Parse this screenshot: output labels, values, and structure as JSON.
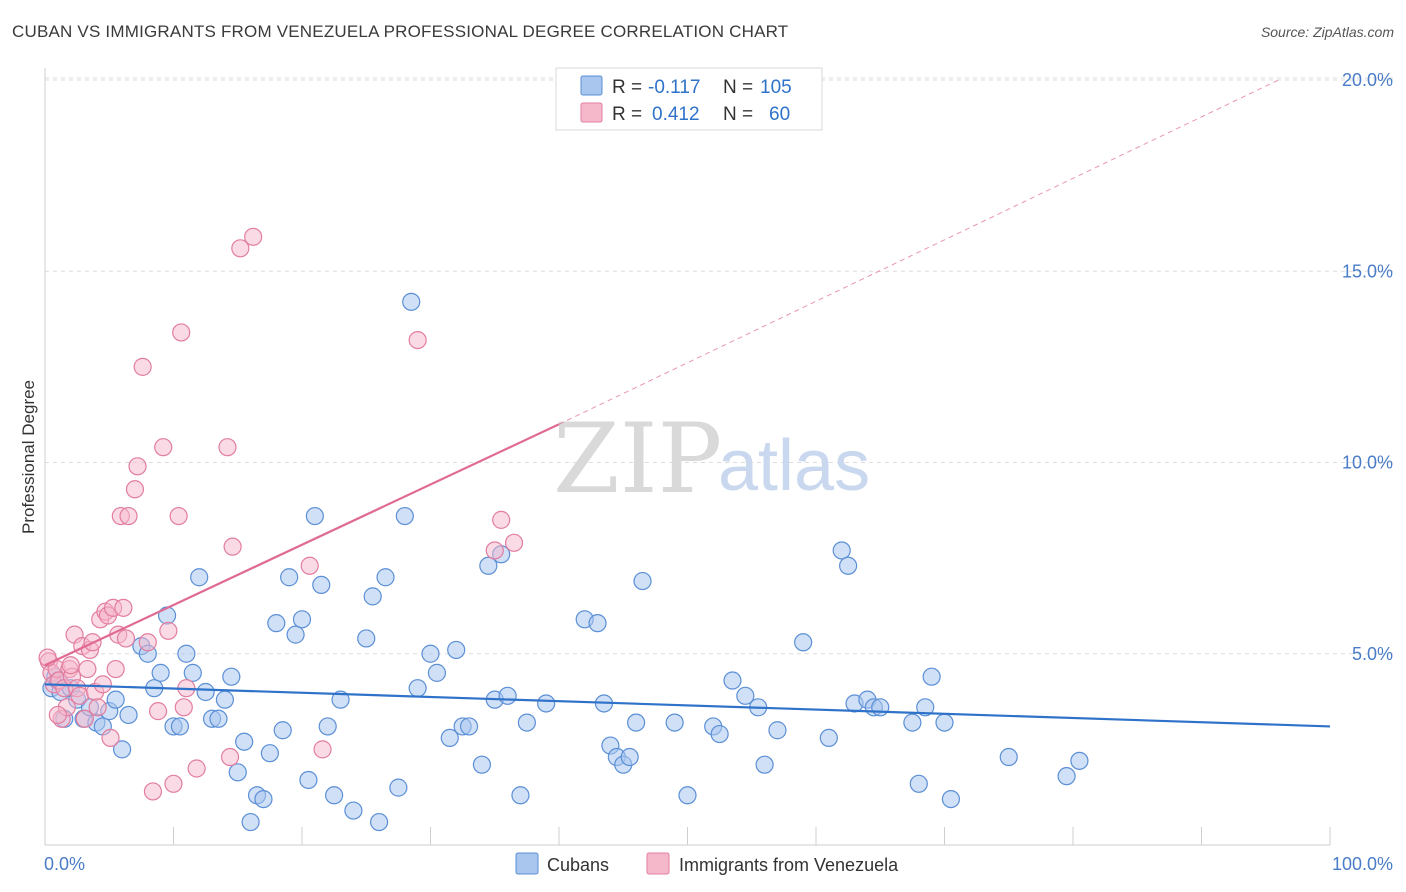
{
  "header": {
    "title": "CUBAN VS IMMIGRANTS FROM VENEZUELA PROFESSIONAL DEGREE CORRELATION CHART",
    "source": "Source: ZipAtlas.com"
  },
  "watermark": {
    "zip": "ZIP",
    "atlas": "atlas"
  },
  "legend": {
    "rows": [
      {
        "r_label": "R =",
        "r_value": "-0.117",
        "n_label": "N =",
        "n_value": "105"
      },
      {
        "r_label": "R =",
        "r_value": "0.412",
        "n_label": "N =",
        "n_value": "60"
      }
    ]
  },
  "bottom_legend": {
    "cubans": "Cubans",
    "venezuela": "Immigrants from Venezuela"
  },
  "chart_data": {
    "type": "scatter",
    "title": "CUBAN VS IMMIGRANTS FROM VENEZUELA PROFESSIONAL DEGREE CORRELATION CHART",
    "xlabel": "",
    "ylabel": "Professional Degree",
    "xlim": [
      0,
      100
    ],
    "ylim": [
      0,
      20
    ],
    "x_tick_labels": [
      "0.0%",
      "100.0%"
    ],
    "y_ticks": [
      5,
      10,
      15,
      20
    ],
    "y_tick_labels": [
      "5.0%",
      "10.0%",
      "15.0%",
      "20.0%"
    ],
    "grid": true,
    "legend_position": "top-center",
    "colors": {
      "cubans_fill": "#a9c6ee",
      "cubans_stroke": "#5b8fd6",
      "cubans_line": "#2f72c9",
      "venezuela_fill": "#f5b8cb",
      "venezuela_stroke": "#e27d9f",
      "venezuela_line": "#e06a93",
      "tick_text": "#4a7cc7"
    },
    "series": [
      {
        "name": "Cubans",
        "r": -0.117,
        "n": 105,
        "trend": {
          "x": [
            0,
            100
          ],
          "y": [
            4.2,
            3.1
          ]
        },
        "points": [
          [
            0.5,
            4.1
          ],
          [
            0.8,
            4.4
          ],
          [
            1.0,
            4.3
          ],
          [
            1.2,
            4.0
          ],
          [
            1.5,
            3.3
          ],
          [
            2.0,
            4.1
          ],
          [
            2.5,
            3.8
          ],
          [
            3.0,
            3.3
          ],
          [
            3.5,
            3.6
          ],
          [
            4.0,
            3.2
          ],
          [
            4.5,
            3.1
          ],
          [
            5.0,
            3.5
          ],
          [
            5.5,
            3.8
          ],
          [
            6.0,
            2.5
          ],
          [
            6.5,
            3.4
          ],
          [
            7.5,
            5.2
          ],
          [
            8.0,
            5.0
          ],
          [
            8.5,
            4.1
          ],
          [
            9.0,
            4.5
          ],
          [
            9.5,
            6.0
          ],
          [
            10.0,
            3.1
          ],
          [
            10.5,
            3.1
          ],
          [
            11.0,
            5.0
          ],
          [
            11.5,
            4.5
          ],
          [
            12.0,
            7.0
          ],
          [
            12.5,
            4.0
          ],
          [
            13.0,
            3.3
          ],
          [
            13.5,
            3.3
          ],
          [
            14.0,
            3.8
          ],
          [
            14.5,
            4.4
          ],
          [
            15.0,
            1.9
          ],
          [
            15.5,
            2.7
          ],
          [
            16.0,
            0.6
          ],
          [
            16.5,
            1.3
          ],
          [
            17.0,
            1.2
          ],
          [
            17.5,
            2.4
          ],
          [
            18.0,
            5.8
          ],
          [
            18.5,
            3.0
          ],
          [
            19.0,
            7.0
          ],
          [
            19.5,
            5.5
          ],
          [
            20.0,
            5.9
          ],
          [
            20.5,
            1.7
          ],
          [
            21.0,
            8.6
          ],
          [
            21.5,
            6.8
          ],
          [
            22.0,
            3.1
          ],
          [
            22.5,
            1.3
          ],
          [
            23.0,
            3.8
          ],
          [
            24.0,
            0.9
          ],
          [
            25.0,
            5.4
          ],
          [
            25.5,
            6.5
          ],
          [
            26.0,
            0.6
          ],
          [
            26.5,
            7.0
          ],
          [
            27.5,
            1.5
          ],
          [
            28.0,
            8.6
          ],
          [
            28.5,
            14.2
          ],
          [
            29.0,
            4.1
          ],
          [
            30.0,
            5.0
          ],
          [
            30.5,
            4.5
          ],
          [
            31.5,
            2.8
          ],
          [
            32.0,
            5.1
          ],
          [
            32.5,
            3.1
          ],
          [
            33.0,
            3.1
          ],
          [
            34.0,
            2.1
          ],
          [
            34.5,
            7.3
          ],
          [
            35.0,
            3.8
          ],
          [
            35.5,
            7.6
          ],
          [
            36.0,
            3.9
          ],
          [
            37.0,
            1.3
          ],
          [
            37.5,
            3.2
          ],
          [
            39.0,
            3.7
          ],
          [
            42.0,
            5.9
          ],
          [
            43.0,
            5.8
          ],
          [
            43.5,
            3.7
          ],
          [
            44.0,
            2.6
          ],
          [
            44.5,
            2.3
          ],
          [
            45.0,
            2.1
          ],
          [
            45.5,
            2.3
          ],
          [
            46.0,
            3.2
          ],
          [
            46.5,
            6.9
          ],
          [
            49.0,
            3.2
          ],
          [
            50.0,
            1.3
          ],
          [
            52.0,
            3.1
          ],
          [
            52.5,
            2.9
          ],
          [
            53.5,
            4.3
          ],
          [
            54.5,
            3.9
          ],
          [
            55.5,
            3.6
          ],
          [
            56.0,
            2.1
          ],
          [
            57.0,
            3.0
          ],
          [
            59.0,
            5.3
          ],
          [
            61.0,
            2.8
          ],
          [
            62.0,
            7.7
          ],
          [
            62.5,
            7.3
          ],
          [
            63.0,
            3.7
          ],
          [
            64.0,
            3.8
          ],
          [
            64.5,
            3.6
          ],
          [
            65.0,
            3.6
          ],
          [
            67.5,
            3.2
          ],
          [
            68.0,
            1.6
          ],
          [
            68.5,
            3.6
          ],
          [
            69.0,
            4.4
          ],
          [
            70.5,
            1.2
          ],
          [
            70.0,
            3.2
          ],
          [
            75.0,
            2.3
          ],
          [
            79.5,
            1.8
          ],
          [
            80.5,
            2.2
          ]
        ]
      },
      {
        "name": "Immigrants from Venezuela",
        "r": 0.412,
        "n": 60,
        "trend": {
          "x": [
            0,
            40
          ],
          "y": [
            4.7,
            11.0
          ]
        },
        "trend_dashed": {
          "x": [
            40,
            96
          ],
          "y": [
            11.0,
            20.0
          ]
        },
        "points": [
          [
            0.3,
            4.8
          ],
          [
            0.5,
            4.5
          ],
          [
            0.7,
            4.2
          ],
          [
            0.9,
            4.6
          ],
          [
            1.1,
            4.3
          ],
          [
            1.3,
            3.3
          ],
          [
            1.5,
            4.1
          ],
          [
            1.7,
            3.6
          ],
          [
            1.9,
            4.6
          ],
          [
            2.1,
            4.4
          ],
          [
            2.3,
            5.5
          ],
          [
            2.5,
            4.1
          ],
          [
            2.7,
            3.9
          ],
          [
            2.9,
            5.2
          ],
          [
            3.1,
            3.3
          ],
          [
            3.3,
            4.6
          ],
          [
            3.5,
            5.1
          ],
          [
            3.7,
            5.3
          ],
          [
            3.9,
            4.0
          ],
          [
            4.1,
            3.6
          ],
          [
            4.3,
            5.9
          ],
          [
            4.5,
            4.2
          ],
          [
            4.7,
            6.1
          ],
          [
            4.9,
            6.0
          ],
          [
            5.1,
            2.8
          ],
          [
            5.3,
            6.2
          ],
          [
            5.5,
            4.6
          ],
          [
            5.7,
            5.5
          ],
          [
            5.9,
            8.6
          ],
          [
            6.1,
            6.2
          ],
          [
            6.3,
            5.4
          ],
          [
            6.5,
            8.6
          ],
          [
            7.0,
            9.3
          ],
          [
            7.2,
            9.9
          ],
          [
            7.6,
            12.5
          ],
          [
            8.0,
            5.3
          ],
          [
            8.4,
            1.4
          ],
          [
            8.8,
            3.5
          ],
          [
            9.2,
            10.4
          ],
          [
            9.6,
            5.6
          ],
          [
            10.0,
            1.6
          ],
          [
            10.4,
            8.6
          ],
          [
            10.6,
            13.4
          ],
          [
            10.8,
            3.6
          ],
          [
            11.0,
            4.1
          ],
          [
            11.8,
            2.0
          ],
          [
            14.2,
            10.4
          ],
          [
            14.4,
            2.3
          ],
          [
            14.6,
            7.8
          ],
          [
            15.2,
            15.6
          ],
          [
            16.2,
            15.9
          ],
          [
            20.6,
            7.3
          ],
          [
            21.6,
            2.5
          ],
          [
            29.0,
            13.2
          ],
          [
            35.0,
            7.7
          ],
          [
            35.5,
            8.5
          ],
          [
            36.5,
            7.9
          ],
          [
            0.2,
            4.9
          ],
          [
            1.0,
            3.4
          ],
          [
            2.0,
            4.7
          ]
        ]
      }
    ]
  }
}
